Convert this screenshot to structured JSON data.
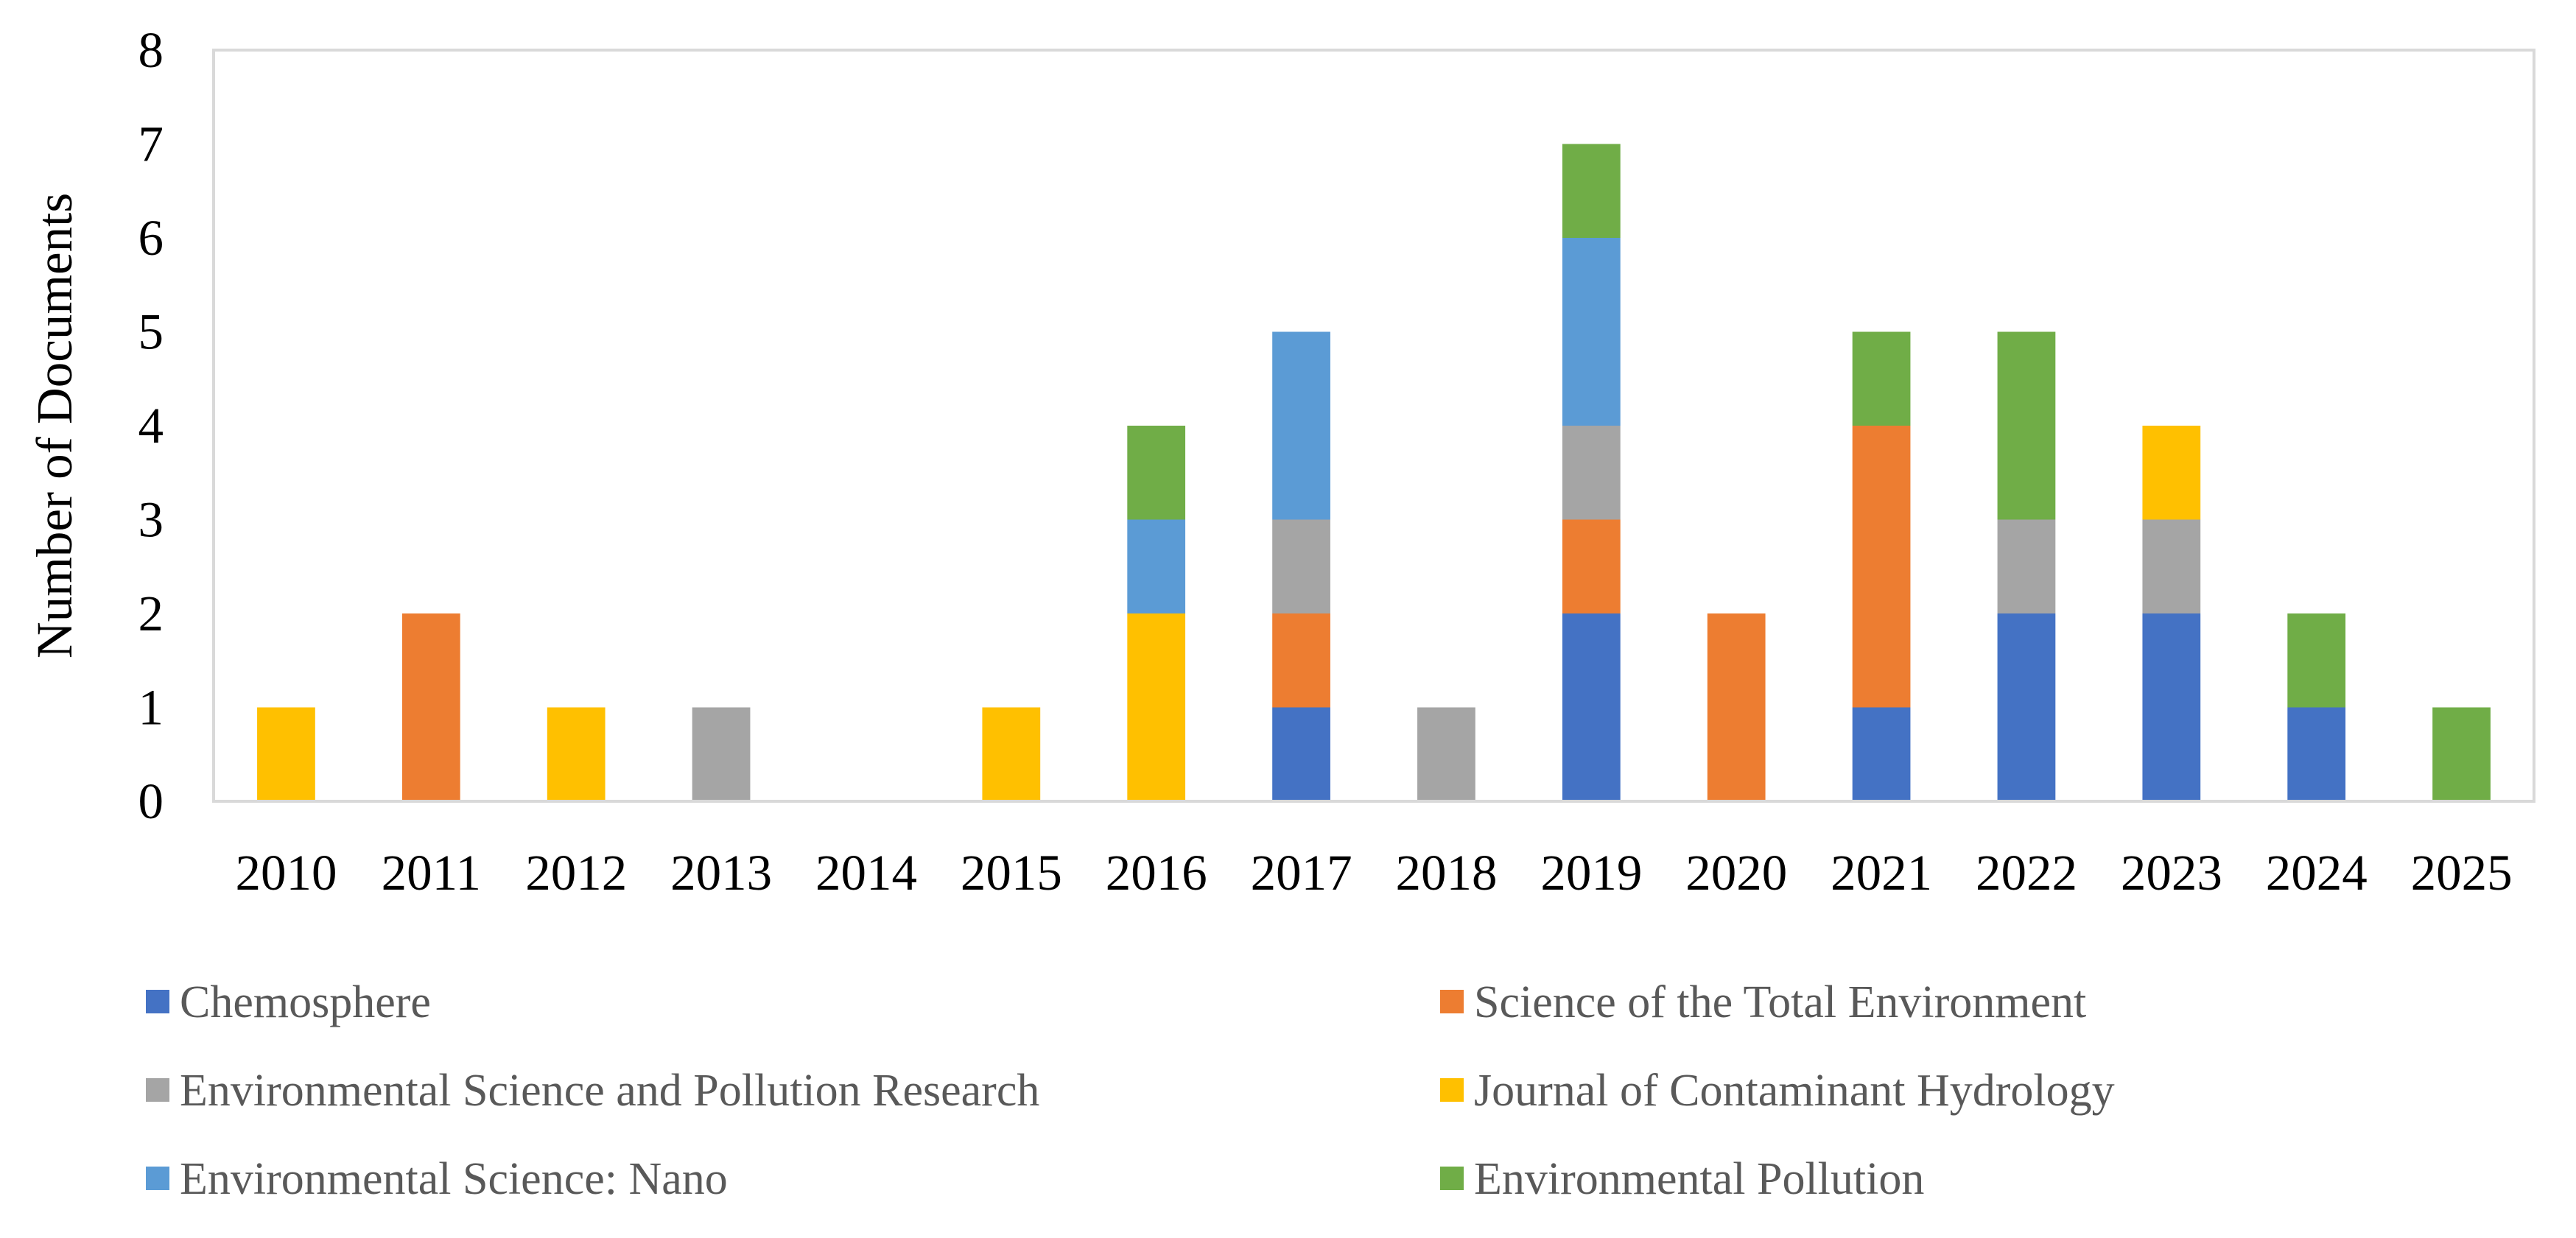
{
  "chart_data": {
    "type": "bar",
    "stacked": true,
    "title": "",
    "xlabel": "",
    "ylabel": "Number of Documents",
    "ylim": [
      0,
      8
    ],
    "yticks": [
      0,
      1,
      2,
      3,
      4,
      5,
      6,
      7,
      8
    ],
    "grid": false,
    "legend_position": "bottom",
    "categories": [
      "2010",
      "2011",
      "2012",
      "2013",
      "2014",
      "2015",
      "2016",
      "2017",
      "2018",
      "2019",
      "2020",
      "2021",
      "2022",
      "2023",
      "2024",
      "2025"
    ],
    "series": [
      {
        "name": "Chemosphere",
        "color": "#4472C4",
        "values": [
          0,
          0,
          0,
          0,
          0,
          0,
          0,
          1,
          0,
          2,
          0,
          1,
          2,
          2,
          1,
          0
        ]
      },
      {
        "name": "Science of the Total Environment",
        "color": "#ED7D31",
        "values": [
          0,
          2,
          0,
          0,
          0,
          0,
          0,
          1,
          0,
          1,
          2,
          3,
          0,
          0,
          0,
          0
        ]
      },
      {
        "name": "Environmental Science and Pollution Research",
        "color": "#A5A5A5",
        "values": [
          0,
          0,
          0,
          1,
          0,
          0,
          0,
          1,
          1,
          1,
          0,
          0,
          1,
          1,
          0,
          0
        ]
      },
      {
        "name": "Journal of Contaminant Hydrology",
        "color": "#FFC000",
        "values": [
          1,
          0,
          1,
          0,
          0,
          1,
          2,
          0,
          0,
          0,
          0,
          0,
          0,
          1,
          0,
          0
        ]
      },
      {
        "name": "Environmental Science: Nano",
        "color": "#5B9BD5",
        "values": [
          0,
          0,
          0,
          0,
          0,
          0,
          1,
          2,
          0,
          2,
          0,
          0,
          0,
          0,
          0,
          0
        ]
      },
      {
        "name": "Environmental Pollution",
        "color": "#70AD47",
        "values": [
          0,
          0,
          0,
          0,
          0,
          0,
          1,
          0,
          0,
          1,
          0,
          1,
          2,
          0,
          1,
          1
        ]
      }
    ]
  }
}
